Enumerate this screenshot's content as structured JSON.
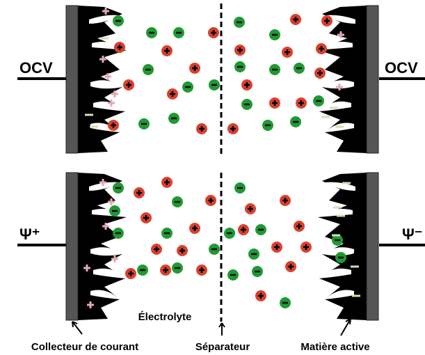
{
  "top_panel": {
    "left_lead": "OCV",
    "right_lead": "OCV"
  },
  "bottom_panel": {
    "left_lead": "Ψ⁺",
    "right_lead": "Ψ⁻"
  },
  "labels": {
    "electrolyte": "Électrolyte",
    "collector": "Collecteur de courant",
    "separator": "Séparateur",
    "active_material": "Matière active"
  }
}
